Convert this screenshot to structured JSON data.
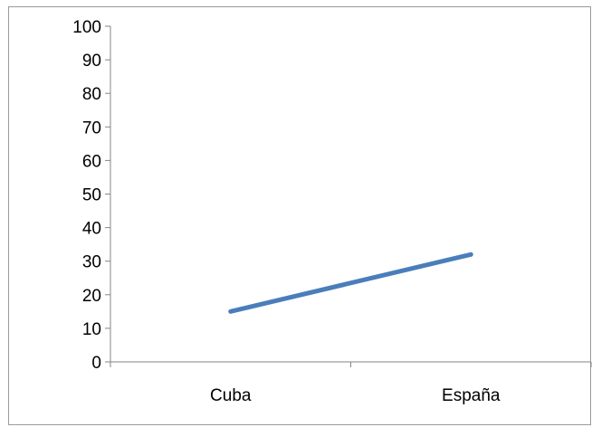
{
  "chart_data": {
    "type": "line",
    "categories": [
      "Cuba",
      "España"
    ],
    "series": [
      {
        "values": [
          15,
          32
        ],
        "color": "#4a7ebb"
      }
    ],
    "ylim": [
      0,
      100
    ],
    "y_ticks": [
      0,
      10,
      20,
      30,
      40,
      50,
      60,
      70,
      80,
      90,
      100
    ],
    "grid": false,
    "legend": "none",
    "title": "",
    "xlabel": "",
    "ylabel": ""
  }
}
